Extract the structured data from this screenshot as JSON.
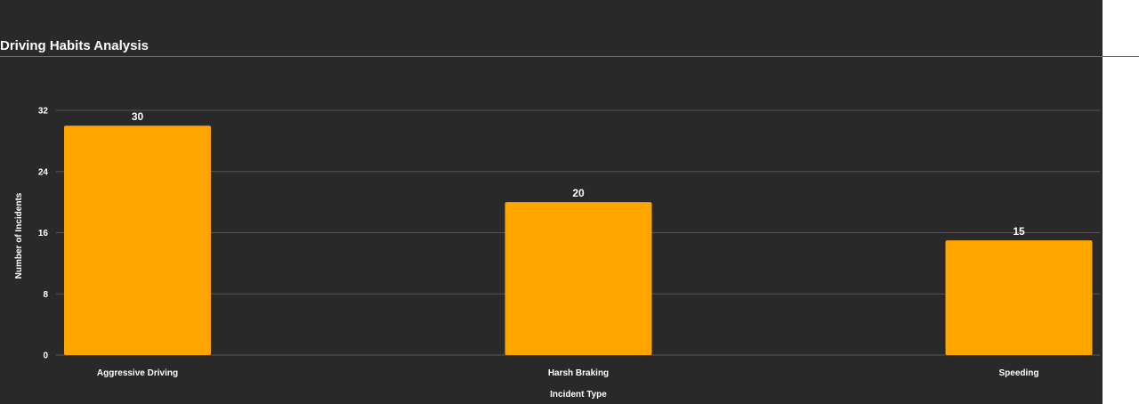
{
  "chart_data": {
    "type": "bar",
    "title": "Driving Habits Analysis",
    "xlabel": "Incident Type",
    "ylabel": "Number of Incidents",
    "categories": [
      "Aggressive Driving",
      "Harsh Braking",
      "Speeding"
    ],
    "values": [
      30,
      20,
      15
    ],
    "ylim": [
      0,
      32
    ],
    "yticks": [
      0,
      8,
      16,
      24,
      32
    ],
    "grid": true,
    "legend": "none",
    "data_labels": true
  },
  "colors": {
    "background": "#292929",
    "bar": "#FFA500",
    "grid": "#555555",
    "text": "#ffffff"
  }
}
